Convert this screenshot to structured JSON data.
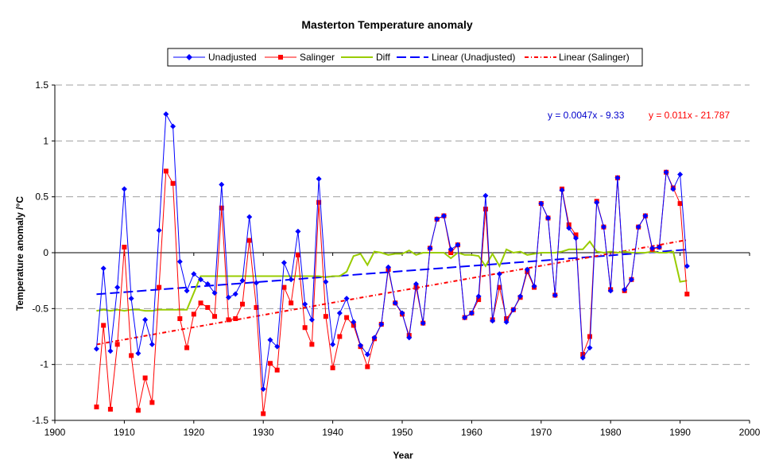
{
  "chart_data": {
    "type": "line",
    "title": "Masterton Temperature anomaly",
    "xlabel": "Year",
    "ylabel": "Temperature anomaly /°C",
    "xlim": [
      1900,
      2000
    ],
    "ylim": [
      -1.5,
      1.5
    ],
    "x_ticks": [
      1900,
      1910,
      1920,
      1930,
      1940,
      1950,
      1960,
      1970,
      1980,
      1990,
      2000
    ],
    "y_ticks": [
      -1.5,
      -1,
      -0.5,
      0,
      0.5,
      1,
      1.5
    ],
    "y_tick_labels": [
      "-1.5",
      "-1",
      "-0.5",
      "0",
      "0.5",
      "1",
      "1.5"
    ],
    "grid": "horizontal dashed",
    "legend_position": "top-center",
    "x": [
      1906,
      1907,
      1908,
      1909,
      1910,
      1911,
      1912,
      1913,
      1914,
      1915,
      1916,
      1917,
      1918,
      1919,
      1920,
      1921,
      1922,
      1923,
      1924,
      1925,
      1926,
      1927,
      1928,
      1929,
      1930,
      1931,
      1932,
      1933,
      1934,
      1935,
      1936,
      1937,
      1938,
      1939,
      1940,
      1941,
      1942,
      1943,
      1944,
      1945,
      1946,
      1947,
      1948,
      1949,
      1950,
      1951,
      1952,
      1953,
      1954,
      1955,
      1956,
      1957,
      1958,
      1959,
      1960,
      1961,
      1962,
      1963,
      1964,
      1965,
      1966,
      1967,
      1968,
      1969,
      1970,
      1971,
      1972,
      1973,
      1974,
      1975,
      1976,
      1977,
      1978,
      1979,
      1980,
      1981,
      1982,
      1983,
      1984,
      1985,
      1986,
      1987,
      1988,
      1989,
      1990,
      1991
    ],
    "series": [
      {
        "name": "Unadjusted",
        "color": "#0000FF",
        "marker": "diamond",
        "values": [
          -0.86,
          -0.14,
          -0.88,
          -0.31,
          0.57,
          -0.41,
          -0.9,
          -0.6,
          -0.82,
          0.2,
          1.24,
          1.13,
          -0.08,
          -0.34,
          -0.19,
          -0.24,
          -0.28,
          -0.36,
          0.61,
          -0.4,
          -0.37,
          -0.25,
          0.32,
          -0.27,
          -1.22,
          -0.78,
          -0.84,
          -0.09,
          -0.24,
          0.19,
          -0.46,
          -0.6,
          0.66,
          -0.26,
          -0.82,
          -0.54,
          -0.41,
          -0.62,
          -0.83,
          -0.91,
          -0.76,
          -0.64,
          -0.13,
          -0.45,
          -0.54,
          -0.76,
          -0.28,
          -0.63,
          0.04,
          0.3,
          0.33,
          0.03,
          0.07,
          -0.58,
          -0.54,
          -0.39,
          0.51,
          -0.61,
          -0.19,
          -0.62,
          -0.51,
          -0.39,
          -0.15,
          -0.3,
          0.44,
          0.31,
          -0.38,
          0.56,
          0.22,
          0.13,
          -0.94,
          -0.85,
          0.45,
          0.23,
          -0.34,
          0.67,
          -0.33,
          -0.24,
          0.23,
          0.33,
          0.04,
          0.05,
          0.72,
          0.57,
          0.7,
          -0.12
        ]
      },
      {
        "name": "Salinger",
        "color": "#FF0000",
        "marker": "square",
        "values": [
          -1.38,
          -0.65,
          -1.4,
          -0.82,
          0.05,
          -0.92,
          -1.41,
          -1.12,
          -1.34,
          -0.31,
          0.73,
          0.62,
          -0.59,
          -0.85,
          -0.55,
          -0.45,
          -0.49,
          -0.57,
          0.4,
          -0.6,
          -0.59,
          -0.46,
          0.11,
          -0.49,
          -1.44,
          -0.99,
          -1.05,
          -0.31,
          -0.45,
          -0.02,
          -0.67,
          -0.82,
          0.45,
          -0.57,
          -1.03,
          -0.75,
          -0.58,
          -0.65,
          -0.84,
          -1.02,
          -0.77,
          -0.64,
          -0.15,
          -0.45,
          -0.55,
          -0.74,
          -0.31,
          -0.63,
          0.04,
          0.3,
          0.33,
          0.0,
          0.07,
          -0.58,
          -0.54,
          -0.42,
          0.39,
          -0.6,
          -0.31,
          -0.59,
          -0.51,
          -0.4,
          -0.17,
          -0.31,
          0.44,
          0.31,
          -0.38,
          0.57,
          0.25,
          0.16,
          -0.91,
          -0.75,
          0.46,
          0.23,
          -0.33,
          0.67,
          -0.34,
          -0.24,
          0.23,
          0.33,
          0.03,
          0.05,
          0.72,
          0.58,
          0.44,
          -0.37
        ]
      },
      {
        "name": "Diff",
        "color": "#99CC00",
        "marker": "none",
        "values": [
          -0.52,
          -0.51,
          -0.52,
          -0.51,
          -0.52,
          -0.51,
          -0.51,
          -0.52,
          -0.52,
          -0.51,
          -0.51,
          -0.51,
          -0.51,
          -0.51,
          -0.36,
          -0.21,
          -0.21,
          -0.21,
          -0.21,
          -0.21,
          -0.21,
          -0.21,
          -0.21,
          -0.21,
          -0.21,
          -0.21,
          -0.21,
          -0.21,
          -0.21,
          -0.21,
          -0.21,
          -0.21,
          -0.21,
          -0.22,
          -0.21,
          -0.21,
          -0.17,
          -0.03,
          -0.01,
          -0.11,
          0.01,
          0.0,
          -0.02,
          -0.01,
          -0.01,
          0.02,
          -0.02,
          0.0,
          0.0,
          0.0,
          0.0,
          -0.05,
          0.0,
          -0.02,
          -0.02,
          -0.03,
          -0.12,
          -0.01,
          -0.12,
          0.03,
          0.0,
          0.01,
          -0.02,
          -0.01,
          0.0,
          0.0,
          0.0,
          0.01,
          0.03,
          0.03,
          0.03,
          0.1,
          0.01,
          0.0,
          0.01,
          0.0,
          0.01,
          0.0,
          0.0,
          0.0,
          0.01,
          0.0,
          0.0,
          0.01,
          -0.26,
          -0.25
        ]
      },
      {
        "name": "Linear (Unadjusted)",
        "color": "#0000FF",
        "style": "dashed-long",
        "trend": {
          "slope": 0.0047,
          "intercept": -9.33,
          "x_range": [
            1906,
            1991
          ]
        }
      },
      {
        "name": "Linear (Salinger)",
        "color": "#FF0000",
        "style": "dash-dot",
        "trend": {
          "slope": 0.011,
          "intercept": -21.787,
          "x_range": [
            1906,
            1991
          ]
        }
      }
    ],
    "annotations": [
      {
        "text": "y = 0.0047x - 9.33",
        "color": "#0000CC"
      },
      {
        "text": "y = 0.011x - 21.787",
        "color": "#FF0000"
      }
    ]
  }
}
